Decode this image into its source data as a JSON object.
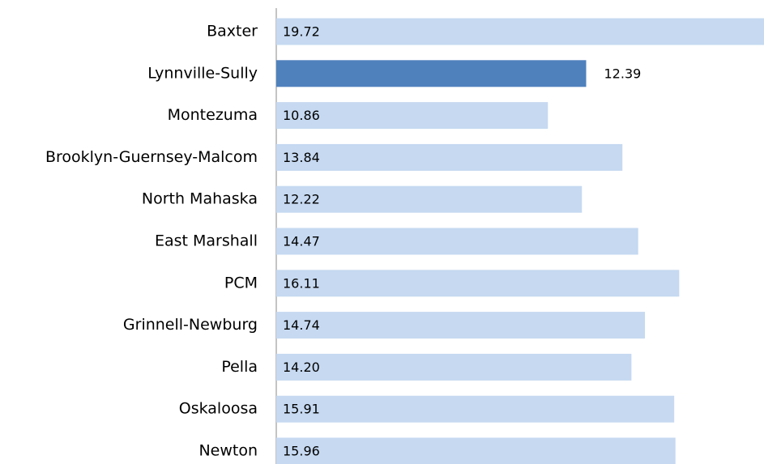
{
  "chart_data": {
    "type": "hbar",
    "categories": [
      "Baxter",
      "Lynnville-Sully",
      "Montezuma",
      "Brooklyn-Guernsey-Malcom",
      "North Mahaska",
      "East Marshall",
      "PCM",
      "Grinnell-Newburg",
      "Pella",
      "Oskaloosa",
      "Newton"
    ],
    "values": [
      19.72,
      12.39,
      10.86,
      13.84,
      12.22,
      14.47,
      16.11,
      14.74,
      14.2,
      15.91,
      15.96
    ],
    "value_labels": [
      "19.72",
      "12.39",
      "10.86",
      "13.84",
      "12.22",
      "14.47",
      "16.11",
      "14.74",
      "14.20",
      "15.91",
      "15.96"
    ],
    "colors": [
      "#c6d9f1",
      "#4f81bd",
      "#c6d9f1",
      "#c6d9f1",
      "#c6d9f1",
      "#c6d9f1",
      "#c6d9f1",
      "#c6d9f1",
      "#c6d9f1",
      "#c6d9f1",
      "#c6d9f1"
    ],
    "xlim": [
      0,
      19.5
    ]
  }
}
